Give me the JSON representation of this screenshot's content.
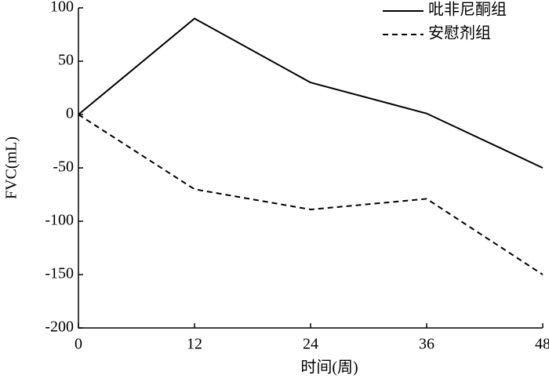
{
  "chart_data": {
    "type": "line",
    "x_label": "时间(周)",
    "y_label": "FVC(mL)",
    "x": [
      0,
      12,
      24,
      36,
      48
    ],
    "series": [
      {
        "name": "吡非尼酮组",
        "color": "#000000",
        "linestyle": "solid",
        "values": [
          0,
          90,
          30,
          1,
          -50
        ]
      },
      {
        "name": "安慰剂组",
        "color": "#000000",
        "linestyle": "dashed",
        "values": [
          0,
          -70,
          -89,
          -79,
          -150
        ]
      }
    ],
    "xlim": [
      0,
      48
    ],
    "xticks": [
      0,
      12,
      24,
      36,
      48
    ],
    "ylim": [
      -200,
      100
    ],
    "yticks": [
      -200,
      -150,
      -100,
      -50,
      0,
      50,
      100
    ],
    "legend": "upper right"
  }
}
